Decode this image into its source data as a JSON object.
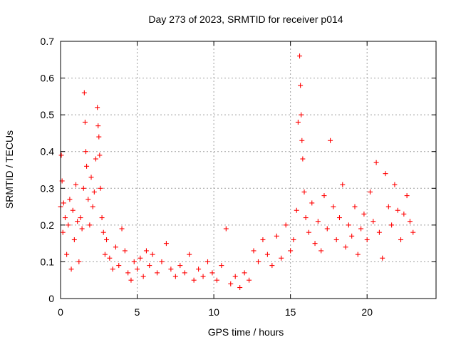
{
  "chart_data": {
    "type": "scatter",
    "title": "Day 273 of 2023, SRMTID for receiver p014",
    "xlabel": "GPS time / hours",
    "ylabel": "SRMTID / TECUs",
    "xlim": [
      0,
      24.5
    ],
    "ylim": [
      0,
      0.7
    ],
    "xticks": [
      0,
      5,
      10,
      15,
      20
    ],
    "xtick_labels": [
      "0",
      "5",
      "10",
      "15",
      "20"
    ],
    "yticks": [
      0,
      0.1,
      0.2,
      0.3,
      0.4,
      0.5,
      0.6,
      0.7
    ],
    "ytick_labels": [
      "0",
      "0.1",
      "0.2",
      "0.3",
      "0.4",
      "0.5",
      "0.6",
      "0.7"
    ],
    "grid": true,
    "marker": "+",
    "color": "#ff0000",
    "series": [
      {
        "name": "SRMTID",
        "x": [
          0.0,
          0.05,
          0.1,
          0.15,
          0.2,
          0.3,
          0.4,
          0.5,
          0.6,
          0.7,
          0.8,
          0.9,
          1.0,
          1.1,
          1.2,
          1.3,
          1.4,
          1.5,
          1.55,
          1.6,
          1.65,
          1.7,
          1.8,
          1.9,
          2.0,
          2.1,
          2.2,
          2.3,
          2.4,
          2.45,
          2.5,
          2.55,
          2.6,
          2.7,
          2.8,
          2.9,
          3.0,
          3.2,
          3.4,
          3.6,
          3.8,
          4.0,
          4.2,
          4.4,
          4.6,
          4.8,
          5.0,
          5.2,
          5.4,
          5.6,
          5.8,
          6.0,
          6.3,
          6.6,
          6.9,
          7.2,
          7.5,
          7.8,
          8.1,
          8.4,
          8.7,
          9.0,
          9.3,
          9.6,
          9.9,
          10.2,
          10.5,
          10.8,
          11.1,
          11.4,
          11.7,
          12.0,
          12.3,
          12.6,
          12.9,
          13.2,
          13.5,
          13.8,
          14.1,
          14.4,
          14.7,
          15.0,
          15.2,
          15.4,
          15.5,
          15.6,
          15.65,
          15.7,
          15.75,
          15.8,
          15.9,
          16.0,
          16.2,
          16.4,
          16.6,
          16.8,
          17.0,
          17.2,
          17.4,
          17.6,
          17.8,
          18.0,
          18.2,
          18.4,
          18.6,
          18.8,
          19.0,
          19.2,
          19.4,
          19.6,
          19.8,
          20.0,
          20.2,
          20.4,
          20.6,
          20.8,
          21.0,
          21.2,
          21.4,
          21.6,
          21.8,
          22.0,
          22.2,
          22.4,
          22.6,
          22.8,
          23.0
        ],
        "y": [
          0.25,
          0.39,
          0.32,
          0.18,
          0.26,
          0.22,
          0.12,
          0.2,
          0.27,
          0.08,
          0.24,
          0.16,
          0.31,
          0.21,
          0.1,
          0.22,
          0.19,
          0.3,
          0.56,
          0.48,
          0.4,
          0.36,
          0.27,
          0.2,
          0.33,
          0.25,
          0.29,
          0.38,
          0.52,
          0.47,
          0.44,
          0.39,
          0.3,
          0.22,
          0.18,
          0.12,
          0.16,
          0.11,
          0.08,
          0.14,
          0.09,
          0.19,
          0.13,
          0.07,
          0.05,
          0.1,
          0.08,
          0.11,
          0.06,
          0.13,
          0.09,
          0.12,
          0.07,
          0.1,
          0.15,
          0.08,
          0.06,
          0.09,
          0.07,
          0.12,
          0.05,
          0.08,
          0.06,
          0.1,
          0.07,
          0.05,
          0.09,
          0.19,
          0.04,
          0.06,
          0.03,
          0.07,
          0.05,
          0.13,
          0.1,
          0.16,
          0.12,
          0.09,
          0.17,
          0.11,
          0.2,
          0.13,
          0.16,
          0.24,
          0.48,
          0.66,
          0.58,
          0.5,
          0.43,
          0.38,
          0.29,
          0.22,
          0.18,
          0.26,
          0.15,
          0.21,
          0.13,
          0.28,
          0.19,
          0.43,
          0.25,
          0.16,
          0.22,
          0.31,
          0.14,
          0.2,
          0.17,
          0.25,
          0.12,
          0.19,
          0.23,
          0.16,
          0.29,
          0.21,
          0.37,
          0.18,
          0.11,
          0.34,
          0.25,
          0.2,
          0.31,
          0.24,
          0.16,
          0.23,
          0.28,
          0.21,
          0.18
        ]
      }
    ]
  }
}
